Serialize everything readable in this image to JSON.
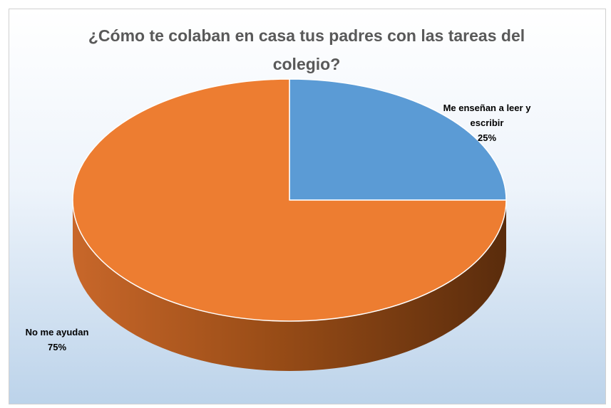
{
  "chart_data": {
    "type": "pie",
    "title": "¿Cómo te colaban en casa tus padres con las tareas del colegio?",
    "categories": [
      "Me enseñan a leer y escribir",
      "No me ayudan"
    ],
    "values": [
      25,
      75
    ],
    "value_labels": [
      "25%",
      "75%"
    ],
    "colors": [
      "#5b9bd5",
      "#ed7d31"
    ]
  }
}
